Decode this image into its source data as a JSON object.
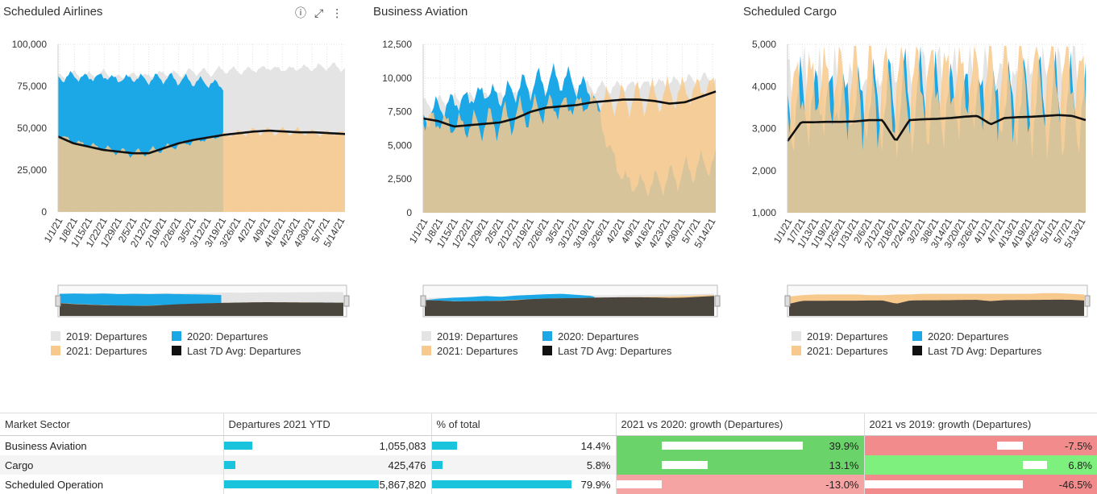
{
  "charts": [
    {
      "title": "Scheduled Airlines",
      "show_icons": true,
      "y_ticks": [
        "100,000",
        "75,000",
        "50,000",
        "25,000",
        "0"
      ],
      "x_ticks": [
        "1/1/21",
        "1/8/21",
        "1/15/21",
        "1/22/21",
        "1/29/21",
        "2/5/21",
        "2/12/21",
        "2/19/21",
        "2/26/21",
        "3/5/21",
        "3/12/21",
        "3/19/21",
        "3/26/21",
        "4/2/21",
        "4/9/21",
        "4/16/21",
        "4/23/21",
        "4/30/21",
        "5/7/21",
        "5/14/21"
      ],
      "legend": [
        "2019: Departures",
        "2020: Departures",
        "2021: Departures",
        "Last 7D Avg: Departures"
      ]
    },
    {
      "title": "Business Aviation",
      "show_icons": false,
      "y_ticks": [
        "12,500",
        "10,000",
        "7,500",
        "5,000",
        "2,500",
        "0"
      ],
      "x_ticks": [
        "1/1/21",
        "1/8/21",
        "1/15/21",
        "1/22/21",
        "1/29/21",
        "2/5/21",
        "2/12/21",
        "2/19/21",
        "2/26/21",
        "3/5/21",
        "3/12/21",
        "3/19/21",
        "3/26/21",
        "4/2/21",
        "4/9/21",
        "4/16/21",
        "4/23/21",
        "4/30/21",
        "5/7/21",
        "5/14/21"
      ],
      "legend": [
        "2019: Departures",
        "2020: Departures",
        "2021: Departures",
        "Last 7D Avg: Departures"
      ]
    },
    {
      "title": "Scheduled Cargo",
      "show_icons": false,
      "y_ticks": [
        "5,000",
        "4,000",
        "3,000",
        "2,000",
        "1,000"
      ],
      "x_ticks": [
        "1/1/21",
        "1/7/21",
        "1/13/21",
        "1/19/21",
        "1/25/21",
        "1/31/21",
        "2/6/21",
        "2/12/21",
        "2/18/21",
        "2/24/21",
        "3/2/21",
        "3/8/21",
        "3/14/21",
        "3/20/21",
        "3/26/21",
        "4/1/21",
        "4/7/21",
        "4/13/21",
        "4/19/21",
        "4/25/21",
        "5/1/21",
        "5/7/21",
        "5/13/21"
      ],
      "legend": [
        "2019: Departures",
        "2020: Departures",
        "2021: Departures",
        "Last 7D Avg: Departures"
      ]
    }
  ],
  "chart_data": [
    {
      "type": "area",
      "title": "Scheduled Airlines",
      "ylim": [
        0,
        100000
      ],
      "x_range": [
        "1/1/21",
        "5/20/21"
      ],
      "series": [
        {
          "name": "2019: Departures",
          "values": [
            80000,
            82000,
            81000,
            83000,
            80000,
            82000,
            81000,
            83000,
            82000,
            84000,
            83000,
            85000,
            84000,
            85000,
            86000,
            85000,
            86000,
            86000,
            87000,
            86000
          ]
        },
        {
          "name": "2020: Departures",
          "values": [
            80000,
            81000,
            80000,
            81000,
            79000,
            80000,
            79000,
            80000,
            79000,
            78000,
            77000,
            75000,
            null,
            null,
            null,
            null,
            null,
            null,
            null,
            null
          ]
        },
        {
          "name": "2021: Departures",
          "values": [
            46000,
            42000,
            40000,
            38000,
            36000,
            35000,
            36000,
            38000,
            40000,
            42000,
            44000,
            46000,
            47000,
            48000,
            48000,
            48000,
            48000,
            47000,
            47000,
            47000
          ]
        },
        {
          "name": "Last 7D Avg: Departures",
          "values": [
            45000,
            41000,
            39000,
            37000,
            36000,
            35000,
            35000,
            38000,
            41000,
            43000,
            44500,
            46000,
            47000,
            48000,
            48500,
            48000,
            47500,
            47500,
            47000,
            46500
          ]
        }
      ]
    },
    {
      "type": "area",
      "title": "Business Aviation",
      "ylim": [
        0,
        12500
      ],
      "x_range": [
        "1/1/21",
        "5/20/21"
      ],
      "series": [
        {
          "name": "2019: Departures",
          "values": [
            8000,
            8200,
            8300,
            8500,
            8600,
            8700,
            8800,
            8900,
            9000,
            9100,
            9200,
            9300,
            9300,
            9400,
            9500,
            9600,
            9700,
            9800,
            9900,
            10000
          ]
        },
        {
          "name": "2020: Departures",
          "values": [
            7000,
            7800,
            8200,
            8500,
            9000,
            8600,
            9200,
            9500,
            9800,
            10000,
            9500,
            9000,
            5000,
            2500,
            2000,
            2200,
            2500,
            3000,
            3500,
            3800
          ]
        },
        {
          "name": "2021: Departures",
          "values": [
            7000,
            6800,
            6500,
            6500,
            6600,
            6800,
            7200,
            7500,
            7800,
            7900,
            8000,
            8200,
            8300,
            8400,
            8500,
            8600,
            8800,
            9000,
            9200,
            9500
          ]
        },
        {
          "name": "Last 7D Avg: Departures",
          "values": [
            7000,
            6800,
            6400,
            6500,
            6600,
            6700,
            7000,
            7500,
            7800,
            7900,
            8000,
            8200,
            8300,
            8400,
            8400,
            8300,
            8100,
            8200,
            8600,
            9000
          ]
        }
      ]
    },
    {
      "type": "area",
      "title": "Scheduled Cargo",
      "ylim": [
        1000,
        5000
      ],
      "x_range": [
        "1/1/21",
        "5/18/21"
      ],
      "series": [
        {
          "name": "2019: Departures",
          "values": [
            3600,
            3700,
            3700,
            3800,
            3800,
            3700,
            3600,
            3700,
            3800,
            3800,
            3800,
            3900,
            3900,
            3900,
            4000,
            4000,
            3900,
            3900,
            4000,
            4000,
            4000,
            4000,
            3900
          ]
        },
        {
          "name": "2020: Departures",
          "values": [
            3500,
            3600,
            3600,
            3700,
            3700,
            3600,
            3600,
            3600,
            3600,
            3700,
            3700,
            3600,
            3600,
            3700,
            3700,
            3600,
            3600,
            3600,
            3600,
            3600,
            3500,
            3500,
            3500
          ]
        },
        {
          "name": "2021: Departures",
          "values": [
            3800,
            4000,
            4100,
            4100,
            4100,
            4100,
            4000,
            4000,
            4100,
            4100,
            4200,
            4200,
            4200,
            4200,
            4200,
            4200,
            4200,
            4200,
            4200,
            4300,
            4300,
            4200,
            4100
          ]
        },
        {
          "name": "Last 7D Avg: Departures",
          "values": [
            2700,
            3150,
            3150,
            3160,
            3160,
            3170,
            3200,
            3200,
            2700,
            3200,
            3220,
            3230,
            3250,
            3280,
            3300,
            3100,
            3250,
            3270,
            3280,
            3300,
            3320,
            3300,
            3200
          ]
        }
      ]
    }
  ],
  "table": {
    "headers": [
      "Market Sector",
      "Departures 2021 YTD",
      "% of total",
      "2021 vs 2020: growth (Departures)",
      "2021 vs 2019: growth (Departures)"
    ],
    "rows": [
      {
        "sector": "Business Aviation",
        "departures": "1,055,083",
        "dep_value": 1055083,
        "pct": "14.4%",
        "pct_value": 14.4,
        "g2020": "39.9%",
        "g2020_value": 39.9,
        "g2019": "-7.5%",
        "g2019_value": -7.5
      },
      {
        "sector": "Cargo",
        "departures": "425,476",
        "dep_value": 425476,
        "pct": "5.8%",
        "pct_value": 5.8,
        "g2020": "13.1%",
        "g2020_value": 13.1,
        "g2019": "6.8%",
        "g2019_value": 6.8
      },
      {
        "sector": "Scheduled Operation",
        "departures": "5,867,820",
        "dep_value": 5867820,
        "pct": "79.9%",
        "pct_value": 79.9,
        "g2020": "-13.0%",
        "g2020_value": -13.0,
        "g2019": "-46.5%",
        "g2019_value": -46.5
      }
    ]
  },
  "colors": {
    "y2019": "#e4e4e4",
    "y2020": "#1ca7e6",
    "y2021": "#f8c98c",
    "avg": "#111111",
    "overlap": "#c7c1a1",
    "bar": "#19c4dc",
    "pos_strong": "#6ad46a",
    "pos_light": "#7df07d",
    "neg_light": "#f6a3a3",
    "neg_strong": "#f28b8b"
  },
  "icons": [
    "info-icon",
    "expand-icon",
    "more-icon"
  ]
}
